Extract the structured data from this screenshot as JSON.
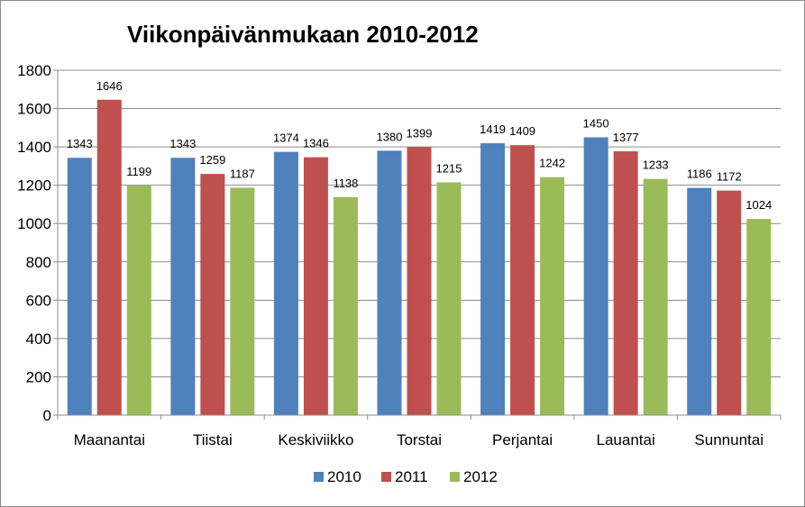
{
  "chart_data": {
    "type": "bar",
    "title": "Viikonpäivänmukaan 2010-2012",
    "xlabel": "",
    "ylabel": "",
    "ylim": [
      0,
      1800
    ],
    "yticks": [
      "0",
      "200",
      "400",
      "600",
      "800",
      "1000",
      "1200",
      "1400",
      "1600",
      "1800"
    ],
    "grid": true,
    "legend_position": "bottom",
    "categories": [
      "Maanantai",
      "Tiistai",
      "Keskiviikko",
      "Torstai",
      "Perjantai",
      "Lauantai",
      "Sunnuntai"
    ],
    "series": [
      {
        "name": "2010",
        "color": "#4f81bd",
        "values": [
          1343,
          1343,
          1374,
          1380,
          1419,
          1450,
          1186
        ]
      },
      {
        "name": "2011",
        "color": "#c0504d",
        "values": [
          1646,
          1259,
          1346,
          1399,
          1409,
          1377,
          1172
        ]
      },
      {
        "name": "2012",
        "color": "#9bbb59",
        "values": [
          1199,
          1187,
          1138,
          1215,
          1242,
          1233,
          1024
        ]
      }
    ]
  }
}
